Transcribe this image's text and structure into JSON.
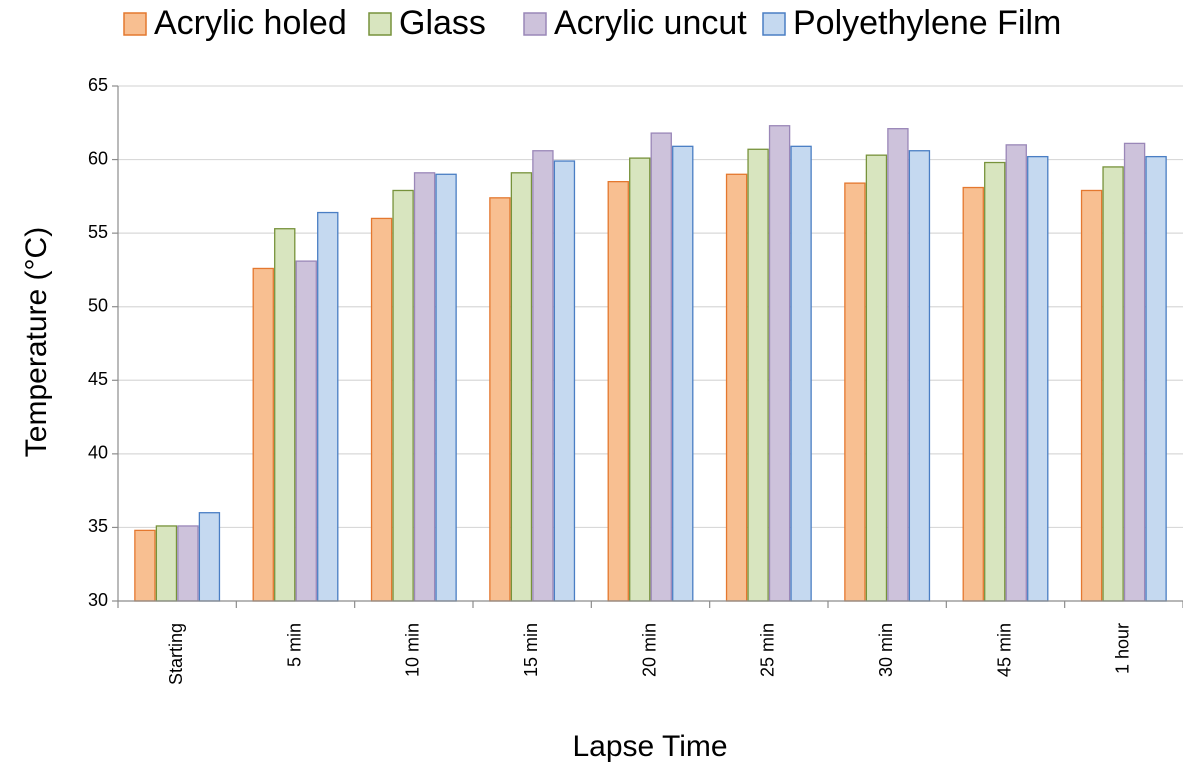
{
  "chart_data": {
    "type": "bar",
    "title": "",
    "xlabel": "Lapse Time",
    "ylabel": "Temperature (°C)",
    "ylim": [
      30,
      65
    ],
    "yticks": [
      30,
      35,
      40,
      45,
      50,
      55,
      60,
      65
    ],
    "grid": true,
    "legend_position": "top",
    "categories": [
      "Starting",
      "5 min",
      "10 min",
      "15 min",
      "20 min",
      "25 min",
      "30 min",
      "45 min",
      "1 hour"
    ],
    "series": [
      {
        "name": "Acrylic holed",
        "fill": "#f8bf91",
        "stroke": "#e4782f",
        "values": [
          34.8,
          52.6,
          56.0,
          57.4,
          58.5,
          59.0,
          58.4,
          58.1,
          57.9
        ]
      },
      {
        "name": "Glass",
        "fill": "#d8e5bf",
        "stroke": "#77923b",
        "values": [
          35.1,
          55.3,
          57.9,
          59.1,
          60.1,
          60.7,
          60.3,
          59.8,
          59.5
        ]
      },
      {
        "name": "Acrylic uncut",
        "fill": "#cdc2db",
        "stroke": "#9a87b8",
        "values": [
          35.1,
          53.1,
          59.1,
          60.6,
          61.8,
          62.3,
          62.1,
          61.0,
          61.1
        ]
      },
      {
        "name": "Polyethylene Film",
        "fill": "#c5d9f0",
        "stroke": "#4a7ec4",
        "values": [
          36.0,
          56.4,
          59.0,
          59.9,
          60.9,
          60.9,
          60.6,
          60.2,
          60.2
        ]
      }
    ]
  }
}
